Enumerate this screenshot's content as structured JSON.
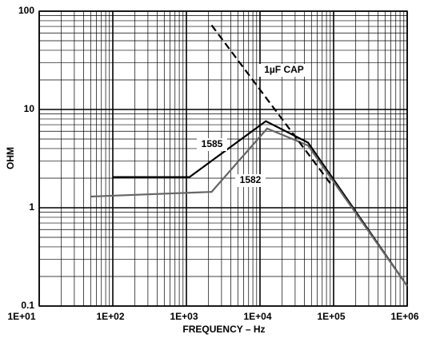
{
  "chart_data": {
    "type": "line",
    "x_label": "FREQUENCY – Hz",
    "y_label": "OHM",
    "x_log": true,
    "y_log": true,
    "grid": true,
    "minor_grid": true,
    "xlim": [
      10,
      1000000
    ],
    "xticks": [
      {
        "value": 10,
        "label": "1E+01"
      },
      {
        "value": 100,
        "label": "1E+02"
      },
      {
        "value": 1000,
        "label": "1E+03"
      },
      {
        "value": 10000,
        "label": "1E+04"
      },
      {
        "value": 100000,
        "label": "1E+05"
      },
      {
        "value": 1000000,
        "label": "1E+06"
      }
    ],
    "ylim": [
      0.1,
      100
    ],
    "yticks": [
      0.1,
      1,
      10,
      100
    ],
    "series": [
      {
        "name": "1585",
        "color": "#000000",
        "dash": false,
        "x": [
          100,
          1100,
          12000,
          45000,
          1000000
        ],
        "values": [
          2.05,
          2.05,
          7.6,
          4.6,
          0.16
        ]
      },
      {
        "name": "1582",
        "color": "#666666",
        "dash": false,
        "x": [
          50,
          2200,
          12500,
          45000,
          1000000
        ],
        "values": [
          1.3,
          1.45,
          6.4,
          4.3,
          0.16
        ]
      },
      {
        "name": "1µF CAP",
        "color": "#000000",
        "dash": true,
        "x": [
          2200,
          94000
        ],
        "values": [
          72,
          1.7
        ]
      }
    ]
  }
}
